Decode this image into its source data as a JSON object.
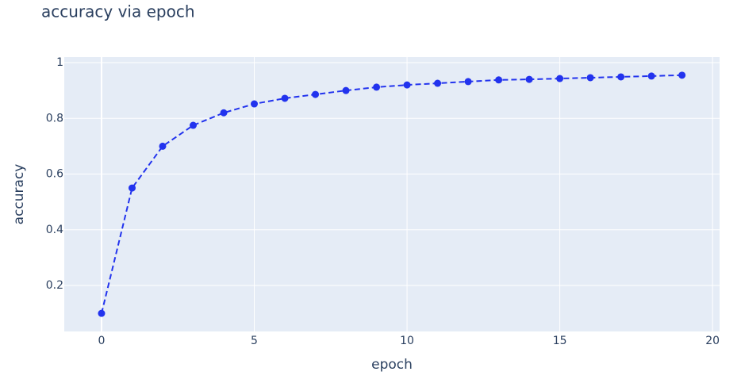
{
  "chart_data": {
    "type": "line",
    "title": "accuracy via epoch",
    "x_label": "epoch",
    "y_label": "accuracy",
    "x": [
      0,
      1,
      2,
      3,
      4,
      5,
      6,
      7,
      8,
      9,
      10,
      11,
      12,
      13,
      14,
      15,
      16,
      17,
      18,
      19
    ],
    "series": [
      {
        "name": "accuracy",
        "color": "#2233ee",
        "values": [
          0.1,
          0.55,
          0.7,
          0.775,
          0.82,
          0.852,
          0.872,
          0.886,
          0.9,
          0.912,
          0.92,
          0.926,
          0.932,
          0.938,
          0.94,
          0.943,
          0.946,
          0.949,
          0.952,
          0.955
        ]
      }
    ],
    "xlim": [
      -1.22,
      20.23
    ],
    "ylim": [
      0.035,
      1.02
    ],
    "xticks": [
      0,
      5,
      10,
      15,
      20
    ],
    "yticks": [
      0.2,
      0.4,
      0.6,
      0.8,
      1
    ],
    "grid": true
  }
}
